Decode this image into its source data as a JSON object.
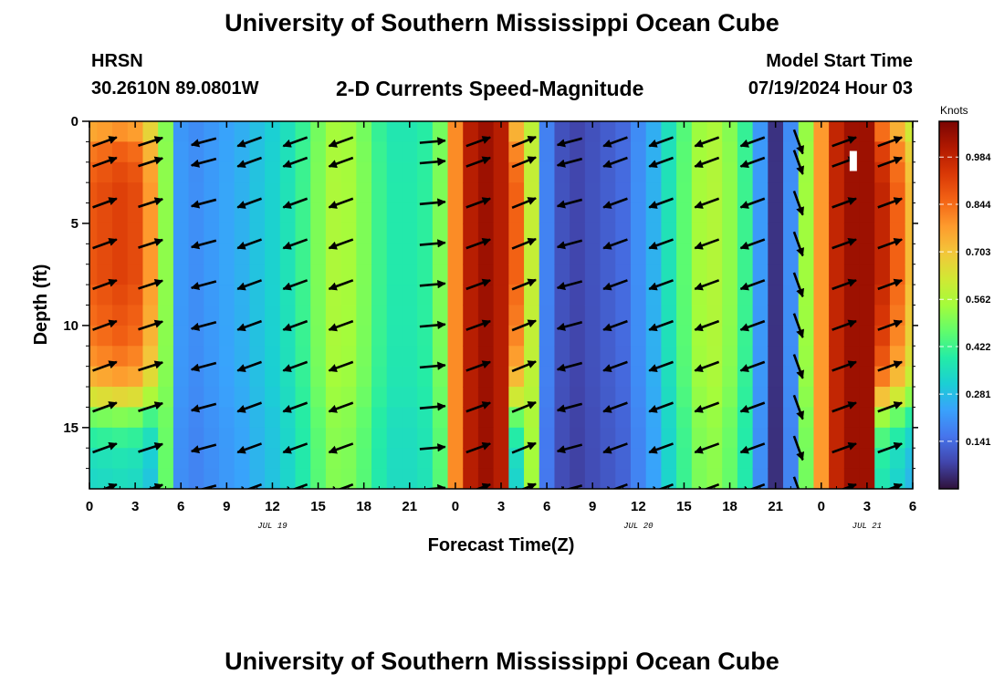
{
  "header": {
    "title": "University of Southern Mississippi Ocean Cube",
    "title_repeat": "University of Southern Mississippi Ocean Cube",
    "station": "HRSN",
    "coordinates": "30.2610N  89.0801W",
    "subtitle": "2-D Currents Speed-Magnitude",
    "model_start_label": "Model Start Time",
    "model_start_value": "07/19/2024 Hour 03"
  },
  "chart_data": {
    "type": "heatmap",
    "xlabel": "Forecast Time(Z)",
    "ylabel": "Depth (ft)",
    "x_tick_labels": [
      "0",
      "3",
      "6",
      "9",
      "12",
      "15",
      "18",
      "21",
      "0",
      "3",
      "6",
      "9",
      "12",
      "15",
      "18",
      "21",
      "0",
      "3",
      "6"
    ],
    "x_hours": [
      0,
      3,
      6,
      9,
      12,
      15,
      18,
      21,
      24,
      27,
      30,
      33,
      36,
      39,
      42,
      45,
      48,
      51,
      54
    ],
    "date_labels": [
      {
        "label": "JUL 19",
        "hour": 12
      },
      {
        "label": "JUL 20",
        "hour": 36
      },
      {
        "label": "JUL 21",
        "hour": 51
      }
    ],
    "xlim": [
      0,
      54
    ],
    "y_ticks": [
      0,
      5,
      10,
      15
    ],
    "ylim": [
      0,
      18
    ],
    "y_inverted": true,
    "colorbar": {
      "label": "Knots",
      "ticks": [
        "0.984",
        "0.844",
        "0.703",
        "0.562",
        "0.422",
        "0.281",
        "0.141"
      ],
      "tick_values": [
        0.984,
        0.844,
        0.703,
        0.562,
        0.422,
        0.281,
        0.141
      ],
      "range": [
        0.0,
        1.09
      ],
      "colormap": [
        "#30123b",
        "#4145ab",
        "#4675ed",
        "#39a2fc",
        "#1bcfd4",
        "#24eca6",
        "#61fc6c",
        "#a4fc3b",
        "#d1e834",
        "#f3c63a",
        "#fe9b2d",
        "#f36315",
        "#d93806",
        "#b11901",
        "#7a0402"
      ]
    },
    "speed_profile": {
      "hours": [
        0,
        1,
        2,
        3,
        4,
        5,
        6,
        7,
        8,
        9,
        10,
        11,
        12,
        13,
        14,
        15,
        16,
        17,
        18,
        19,
        20,
        21,
        22,
        23,
        24,
        25,
        26,
        27,
        28,
        29,
        30,
        31,
        32,
        33,
        34,
        35,
        36,
        37,
        38,
        39,
        40,
        41,
        42,
        43,
        44,
        45,
        46,
        47,
        48,
        49,
        50,
        51,
        52,
        53,
        54
      ],
      "knots": [
        0.88,
        0.9,
        0.92,
        0.9,
        0.78,
        0.52,
        0.22,
        0.2,
        0.22,
        0.24,
        0.26,
        0.29,
        0.32,
        0.36,
        0.42,
        0.5,
        0.56,
        0.55,
        0.5,
        0.42,
        0.38,
        0.38,
        0.4,
        0.5,
        0.8,
        1.0,
        1.04,
        1.0,
        0.86,
        0.6,
        0.18,
        0.1,
        0.08,
        0.1,
        0.12,
        0.14,
        0.2,
        0.26,
        0.36,
        0.46,
        0.55,
        0.57,
        0.52,
        0.42,
        0.22,
        0.05,
        0.2,
        0.54,
        0.78,
        0.98,
        1.04,
        1.04,
        0.98,
        0.86,
        0.72
      ],
      "surface_factor": [
        0.86,
        0.94,
        0.98,
        1.0,
        1.0,
        1.0,
        1.0,
        1.0,
        0.98,
        0.96,
        0.94,
        0.9,
        0.84,
        0.72,
        0.55,
        0.45,
        0.4,
        0.38
      ],
      "surface_damp": {
        "24": 0.0,
        "25": 0.0,
        "26": 0.0,
        "27": 0.0,
        "48": 0.0,
        "49": 0.0,
        "50": 0.0,
        "51": 0.0
      }
    },
    "vectors": {
      "hours": [
        1,
        4,
        7.5,
        10.5,
        13.5,
        16.5,
        22.5,
        25.5,
        28.5,
        31.5,
        34.5,
        37.5,
        40.5,
        43.5,
        46.5,
        49.5,
        52.5
      ],
      "depths": [
        1,
        2,
        4,
        6,
        8,
        10,
        12,
        14,
        16,
        18
      ],
      "direction_deg": [
        20,
        18,
        195,
        200,
        200,
        200,
        5,
        20,
        22,
        195,
        200,
        200,
        200,
        200,
        -70,
        20,
        20
      ],
      "length_px": 28
    },
    "annotations": [
      {
        "type": "white-marker",
        "hour": 50.1,
        "depth": 1.9
      }
    ]
  }
}
